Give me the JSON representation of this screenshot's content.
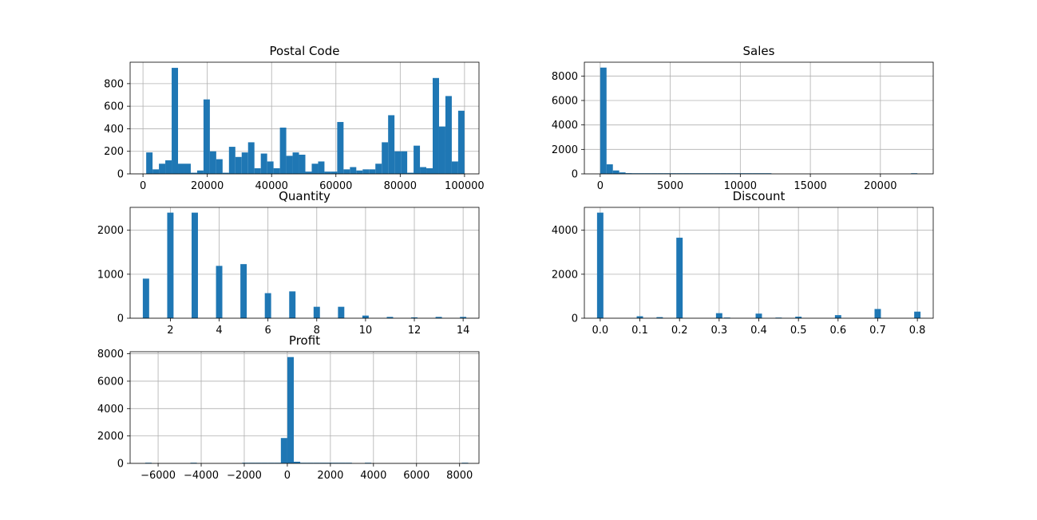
{
  "chart_data": [
    {
      "type": "bar",
      "title": "Postal Code",
      "xlabel": "",
      "ylabel": "",
      "xlim": [
        -4000,
        104500
      ],
      "ylim": [
        0,
        990
      ],
      "xticks": [
        0,
        20000,
        40000,
        60000,
        80000,
        100000
      ],
      "xtick_labels": [
        "0",
        "20000",
        "40000",
        "60000",
        "80000",
        "100000"
      ],
      "yticks": [
        0,
        200,
        400,
        600,
        800
      ],
      "ytick_labels": [
        "0",
        "200",
        "400",
        "600",
        "800"
      ],
      "grid": true,
      "color": "#1f77b4",
      "bin_range": [
        1000,
        100000
      ],
      "values": [
        190,
        40,
        90,
        120,
        940,
        90,
        90,
        10,
        30,
        660,
        200,
        130,
        10,
        240,
        150,
        190,
        280,
        50,
        180,
        110,
        50,
        410,
        160,
        190,
        170,
        20,
        90,
        110,
        20,
        20,
        460,
        40,
        60,
        30,
        40,
        40,
        90,
        280,
        520,
        200,
        200,
        10,
        250,
        60,
        50,
        850,
        420,
        690,
        110,
        560
      ]
    },
    {
      "type": "bar",
      "title": "Sales",
      "xlabel": "",
      "ylabel": "",
      "xlim": [
        -1130,
        23770
      ],
      "ylim": [
        0,
        9130
      ],
      "xticks": [
        0,
        5000,
        10000,
        15000,
        20000
      ],
      "xtick_labels": [
        "0",
        "5000",
        "10000",
        "15000",
        "20000"
      ],
      "yticks": [
        0,
        2000,
        4000,
        6000,
        8000
      ],
      "ytick_labels": [
        "0",
        "2000",
        "4000",
        "6000",
        "8000"
      ],
      "grid": true,
      "color": "#1f77b4",
      "bin_range": [
        0,
        22640
      ],
      "values": [
        8690,
        780,
        280,
        120,
        60,
        40,
        30,
        20,
        10,
        10,
        5,
        5,
        5,
        5,
        3,
        3,
        2,
        2,
        2,
        1,
        1,
        1,
        1,
        1,
        1,
        1,
        1,
        0,
        0,
        0,
        0,
        0,
        0,
        0,
        0,
        0,
        0,
        0,
        0,
        0,
        0,
        0,
        0,
        0,
        0,
        0,
        0,
        0,
        0,
        1
      ]
    },
    {
      "type": "bar",
      "title": "Quantity",
      "xlabel": "",
      "ylabel": "",
      "xlim": [
        0.35,
        14.65
      ],
      "ylim": [
        0,
        2520
      ],
      "xticks": [
        2,
        4,
        6,
        8,
        10,
        12,
        14
      ],
      "xtick_labels": [
        "2",
        "4",
        "6",
        "8",
        "10",
        "12",
        "14"
      ],
      "yticks": [
        0,
        1000,
        2000
      ],
      "ytick_labels": [
        "0",
        "1000",
        "2000"
      ],
      "grid": true,
      "color": "#1f77b4",
      "bar_width": 0.26,
      "x": [
        1,
        2,
        3,
        4,
        5,
        6,
        7,
        8,
        9,
        10,
        11,
        12,
        13,
        14
      ],
      "values": [
        900,
        2400,
        2400,
        1190,
        1230,
        570,
        610,
        260,
        260,
        60,
        30,
        20,
        30,
        30
      ]
    },
    {
      "type": "bar",
      "title": "Discount",
      "xlabel": "",
      "ylabel": "",
      "xlim": [
        -0.04,
        0.84
      ],
      "ylim": [
        0,
        5040
      ],
      "xticks": [
        0.0,
        0.1,
        0.2,
        0.3,
        0.4,
        0.5,
        0.6,
        0.7,
        0.8
      ],
      "xtick_labels": [
        "0.0",
        "0.1",
        "0.2",
        "0.3",
        "0.4",
        "0.5",
        "0.6",
        "0.7",
        "0.8"
      ],
      "yticks": [
        0,
        2000,
        4000
      ],
      "ytick_labels": [
        "0",
        "2000",
        "4000"
      ],
      "grid": true,
      "color": "#1f77b4",
      "bar_width": 0.016,
      "x": [
        0.0,
        0.1,
        0.15,
        0.2,
        0.3,
        0.32,
        0.4,
        0.45,
        0.5,
        0.6,
        0.7,
        0.8
      ],
      "values": [
        4800,
        90,
        50,
        3660,
        230,
        30,
        210,
        10,
        70,
        140,
        420,
        300
      ]
    },
    {
      "type": "bar",
      "title": "Profit",
      "xlabel": "",
      "ylabel": "",
      "xlim": [
        -7300,
        8900
      ],
      "ylim": [
        0,
        8150
      ],
      "xticks": [
        -6000,
        -4000,
        -2000,
        0,
        2000,
        4000,
        6000,
        8000
      ],
      "xtick_labels": [
        "−6000",
        "−4000",
        "−2000",
        "0",
        "2000",
        "4000",
        "6000",
        "8000"
      ],
      "yticks": [
        0,
        2000,
        4000,
        6000,
        8000
      ],
      "ytick_labels": [
        "0",
        "2000",
        "4000",
        "6000",
        "8000"
      ],
      "grid": true,
      "color": "#1f77b4",
      "bin_range": [
        -6600,
        8400
      ],
      "values": [
        1,
        0,
        0,
        0,
        0,
        0,
        0,
        1,
        0,
        0,
        0,
        0,
        0,
        0,
        0,
        1,
        1,
        2,
        3,
        5,
        10,
        1850,
        7760,
        120,
        30,
        10,
        5,
        3,
        2,
        1,
        1,
        1,
        0,
        0,
        1,
        0,
        0,
        0,
        0,
        0,
        0,
        0,
        0,
        0,
        0,
        0,
        0,
        0,
        0,
        1
      ]
    }
  ]
}
